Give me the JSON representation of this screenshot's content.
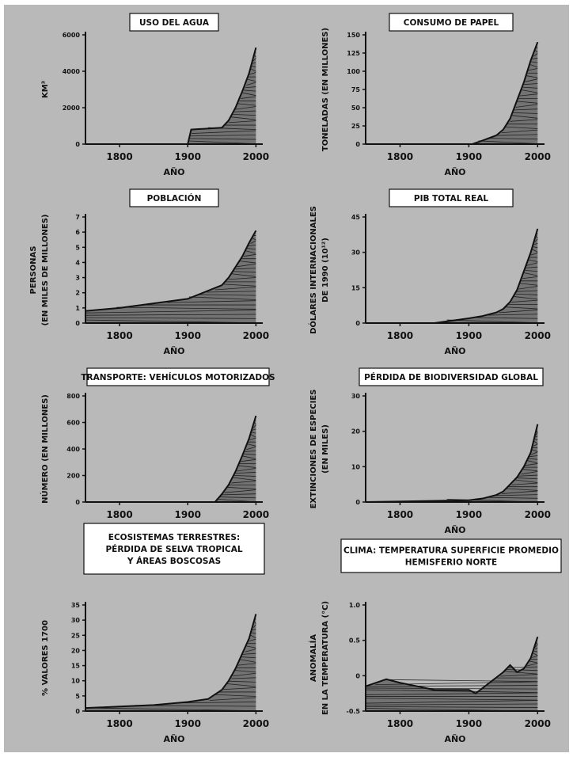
{
  "colors": {
    "background": "#b9b9b9",
    "ink": "#111111",
    "title_box": "#ffffff"
  },
  "chart_data": [
    {
      "type": "area",
      "title": [
        "USO DEL AGUA"
      ],
      "ylabel": [
        "KM³"
      ],
      "xlabel": "AÑO",
      "xlim": [
        1750,
        2010
      ],
      "ylim": [
        0,
        6000
      ],
      "xticks": [
        1800,
        1900,
        2000
      ],
      "yticks": [
        0,
        2000,
        4000,
        6000
      ],
      "ytick_labels": [
        "0",
        "2000",
        "4000",
        "6000"
      ],
      "x": [
        1750,
        1900,
        1905,
        1950,
        1960,
        1970,
        1980,
        1990,
        2000
      ],
      "values": [
        0,
        0,
        800,
        900,
        1300,
        2000,
        2900,
        3900,
        5300
      ]
    },
    {
      "type": "area",
      "title": [
        "CONSUMO DE PAPEL"
      ],
      "ylabel": [
        "TONELADAS (EN MILLONES)"
      ],
      "xlabel": "AÑO",
      "xlim": [
        1750,
        2010
      ],
      "ylim": [
        0,
        150
      ],
      "xticks": [
        1800,
        1900,
        2000
      ],
      "yticks": [
        0,
        25,
        50,
        75,
        100,
        125,
        150
      ],
      "ytick_labels": [
        "0",
        "25",
        "50",
        "75",
        "100",
        "125",
        "150"
      ],
      "x": [
        1750,
        1905,
        1920,
        1940,
        1950,
        1960,
        1970,
        1980,
        1990,
        2000
      ],
      "values": [
        0,
        0,
        5,
        12,
        20,
        35,
        60,
        85,
        115,
        140
      ]
    },
    {
      "type": "area",
      "title": [
        "POBLACIÓN"
      ],
      "ylabel": [
        "PERSONAS",
        "(EN MILES DE MILLONES)"
      ],
      "xlabel": "AÑO",
      "xlim": [
        1750,
        2010
      ],
      "ylim": [
        0,
        7
      ],
      "xticks": [
        1800,
        1900,
        2000
      ],
      "yticks": [
        0,
        1,
        2,
        3,
        4,
        5,
        6,
        7
      ],
      "ytick_labels": [
        "0",
        "1",
        "2",
        "3",
        "4",
        "5",
        "6",
        "7"
      ],
      "x": [
        1750,
        1800,
        1850,
        1900,
        1950,
        1960,
        1970,
        1980,
        1990,
        2000
      ],
      "values": [
        0.8,
        1.0,
        1.3,
        1.6,
        2.5,
        3.0,
        3.7,
        4.4,
        5.3,
        6.1
      ]
    },
    {
      "type": "area",
      "title": [
        "PIB TOTAL REAL"
      ],
      "ylabel": [
        "DÓLARES INTERNACIONALES",
        "DE 1990 (10¹²)"
      ],
      "xlabel": "AÑO",
      "xlim": [
        1750,
        2010
      ],
      "ylim": [
        0,
        45
      ],
      "xticks": [
        1800,
        1900,
        2000
      ],
      "yticks": [
        0,
        15,
        30,
        45
      ],
      "ytick_labels": [
        "0",
        "15",
        "30",
        "45"
      ],
      "x": [
        1750,
        1850,
        1900,
        1920,
        1940,
        1950,
        1960,
        1970,
        1980,
        1990,
        2000
      ],
      "values": [
        0,
        0,
        2,
        3,
        4.5,
        6,
        9,
        14,
        22,
        30,
        40
      ]
    },
    {
      "type": "area",
      "title": [
        "TRANSPORTE: VEHÍCULOS MOTORIZADOS"
      ],
      "ylabel": [
        "NÚMERO (EN MILLONES)"
      ],
      "xlabel": "AÑO",
      "xlim": [
        1750,
        2010
      ],
      "ylim": [
        0,
        800
      ],
      "xticks": [
        1800,
        1900,
        2000
      ],
      "yticks": [
        0,
        200,
        400,
        600,
        800
      ],
      "ytick_labels": [
        "0",
        "200",
        "400",
        "600",
        "800"
      ],
      "x": [
        1750,
        1940,
        1950,
        1960,
        1970,
        1980,
        1990,
        2000
      ],
      "values": [
        0,
        0,
        60,
        130,
        230,
        350,
        480,
        650
      ]
    },
    {
      "type": "area",
      "title": [
        "PÉRDIDA DE BIODIVERSIDAD GLOBAL"
      ],
      "ylabel": [
        "EXTINCIONES DE ESPECIES",
        "(EN MILES)"
      ],
      "xlabel": "AÑO",
      "xlim": [
        1750,
        2010
      ],
      "ylim": [
        0,
        30
      ],
      "xticks": [
        1800,
        1900,
        2000
      ],
      "yticks": [
        0,
        10,
        20,
        30
      ],
      "ytick_labels": [
        "0",
        "10",
        "20",
        "30"
      ],
      "x": [
        1750,
        1900,
        1920,
        1940,
        1950,
        1960,
        1970,
        1980,
        1990,
        2000
      ],
      "values": [
        0,
        0.5,
        1,
        2,
        3,
        5,
        7,
        10,
        14,
        22
      ]
    },
    {
      "type": "area",
      "title": [
        "ECOSISTEMAS TERRESTRES:",
        "PÉRDIDA DE SELVA TROPICAL",
        "Y ÁREAS BOSCOSAS"
      ],
      "ylabel": [
        "% VALORES 1700"
      ],
      "xlabel": "AÑO",
      "xlim": [
        1750,
        2010
      ],
      "ylim": [
        0,
        35
      ],
      "xticks": [
        1800,
        1900,
        2000
      ],
      "yticks": [
        0,
        5,
        10,
        15,
        20,
        25,
        30,
        35
      ],
      "ytick_labels": [
        "0",
        "5",
        "10",
        "15",
        "20",
        "25",
        "30",
        "35"
      ],
      "x": [
        1750,
        1800,
        1850,
        1900,
        1930,
        1950,
        1960,
        1970,
        1980,
        1990,
        2000
      ],
      "values": [
        1,
        1.5,
        2,
        3,
        4,
        7,
        10,
        14,
        19,
        24,
        32
      ]
    },
    {
      "type": "area",
      "title": [
        "CLIMA: TEMPERATURA SUPERFICIE PROMEDIO",
        "HEMISFERIO NORTE"
      ],
      "ylabel": [
        "ANOMALÍA",
        "EN LA TEMPERATURA (°C)"
      ],
      "xlabel": "AÑO",
      "xlim": [
        1750,
        2010
      ],
      "ylim": [
        -0.5,
        1.0
      ],
      "baseline": -0.5,
      "xticks": [
        1800,
        1900,
        2000
      ],
      "yticks": [
        -0.5,
        0,
        0.5,
        1.0
      ],
      "ytick_labels": [
        "-0.5",
        "0",
        "0.5",
        "1.0"
      ],
      "x": [
        1750,
        1780,
        1800,
        1850,
        1900,
        1910,
        1930,
        1950,
        1960,
        1970,
        1980,
        1990,
        2000
      ],
      "values": [
        -0.15,
        -0.05,
        -0.1,
        -0.2,
        -0.2,
        -0.25,
        -0.1,
        0.05,
        0.15,
        0.05,
        0.1,
        0.25,
        0.55
      ]
    }
  ]
}
